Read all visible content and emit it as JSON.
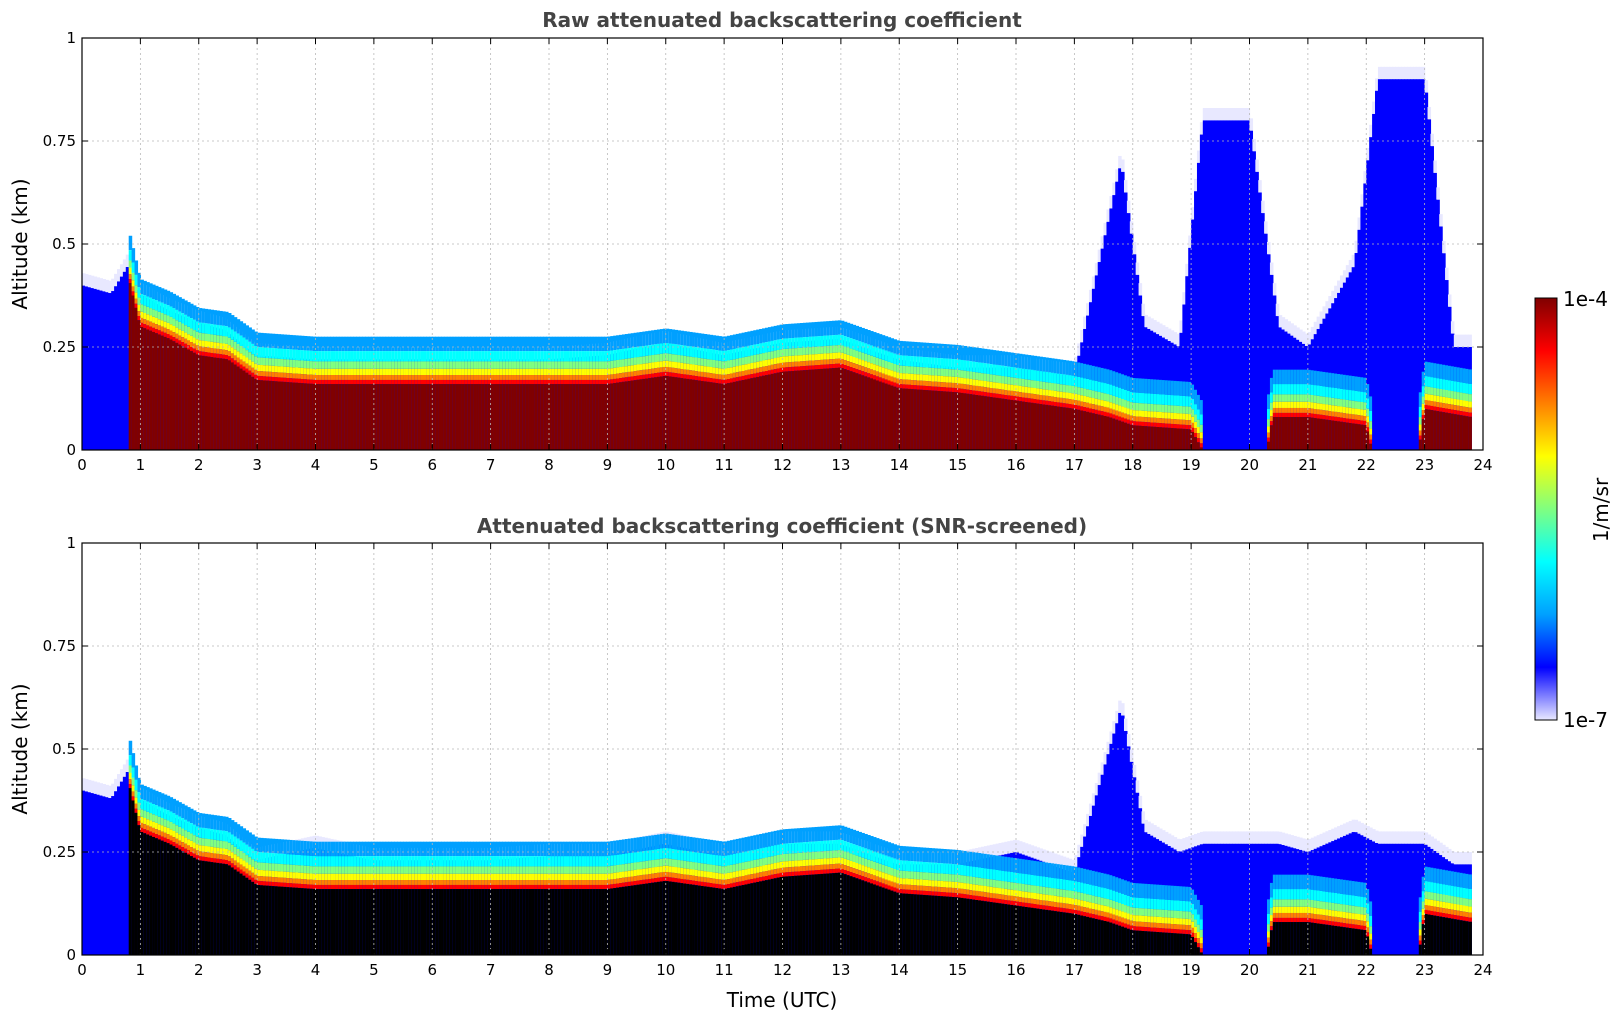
{
  "chart_data": [
    {
      "type": "heatmap",
      "title": "Raw attenuated backscattering coefficient",
      "xlabel": "",
      "ylabel": "Altitude (km)",
      "xlim": [
        0,
        24
      ],
      "ylim": [
        0,
        1
      ],
      "x_ticks": [
        "0",
        "1",
        "2",
        "3",
        "4",
        "5",
        "6",
        "7",
        "8",
        "9",
        "10",
        "11",
        "12",
        "13",
        "14",
        "15",
        "16",
        "17",
        "18",
        "19",
        "20",
        "21",
        "22",
        "23",
        "24"
      ],
      "y_ticks": [
        "0",
        "0.25",
        "0.5",
        "0.75",
        "1"
      ],
      "grid": true,
      "screened": false,
      "layer_top_km": [
        [
          0,
          0.4
        ],
        [
          0.5,
          0.38
        ],
        [
          0.8,
          0.45
        ],
        [
          1,
          0.38
        ],
        [
          1.5,
          0.34
        ],
        [
          2,
          0.31
        ],
        [
          2.5,
          0.29
        ],
        [
          3,
          0.23
        ],
        [
          4,
          0.22
        ],
        [
          5,
          0.22
        ],
        [
          6,
          0.22
        ],
        [
          7,
          0.22
        ],
        [
          8,
          0.22
        ],
        [
          9,
          0.23
        ],
        [
          10,
          0.26
        ],
        [
          11,
          0.23
        ],
        [
          12,
          0.26
        ],
        [
          13,
          0.27
        ],
        [
          14,
          0.22
        ],
        [
          15,
          0.2
        ],
        [
          16,
          0.2
        ],
        [
          17,
          0.18
        ],
        [
          17.8,
          0.7
        ],
        [
          18.2,
          0.3
        ],
        [
          18.8,
          0.25
        ],
        [
          19.2,
          0.8
        ],
        [
          20,
          0.8
        ],
        [
          20.5,
          0.3
        ],
        [
          21,
          0.25
        ],
        [
          21.8,
          0.45
        ],
        [
          22.2,
          0.9
        ],
        [
          23,
          0.9
        ],
        [
          23.5,
          0.25
        ],
        [
          23.8,
          0.25
        ]
      ],
      "dense_layer_top_km": [
        [
          0.8,
          0.42
        ],
        [
          1,
          0.3
        ],
        [
          1.5,
          0.27
        ],
        [
          2,
          0.23
        ],
        [
          2.5,
          0.22
        ],
        [
          3,
          0.17
        ],
        [
          4,
          0.16
        ],
        [
          5,
          0.16
        ],
        [
          6,
          0.16
        ],
        [
          7,
          0.16
        ],
        [
          8,
          0.16
        ],
        [
          9,
          0.16
        ],
        [
          10,
          0.18
        ],
        [
          11,
          0.16
        ],
        [
          12,
          0.19
        ],
        [
          13,
          0.2
        ],
        [
          14,
          0.15
        ],
        [
          15,
          0.14
        ],
        [
          16,
          0.12
        ],
        [
          17,
          0.1
        ],
        [
          17.6,
          0.08
        ],
        [
          18,
          0.06
        ],
        [
          19,
          0.05
        ],
        [
          19.2,
          0.0
        ],
        [
          20.3,
          0.0
        ],
        [
          20.4,
          0.08
        ],
        [
          21,
          0.08
        ],
        [
          22,
          0.06
        ],
        [
          22.1,
          0.0
        ],
        [
          22.9,
          0.0
        ],
        [
          23,
          0.1
        ],
        [
          23.8,
          0.08
        ]
      ]
    },
    {
      "type": "heatmap",
      "title": "Attenuated backscattering coefficient (SNR-screened)",
      "xlabel": "Time (UTC)",
      "ylabel": "Altitude (km)",
      "xlim": [
        0,
        24
      ],
      "ylim": [
        0,
        1
      ],
      "x_ticks": [
        "0",
        "1",
        "2",
        "3",
        "4",
        "5",
        "6",
        "7",
        "8",
        "9",
        "10",
        "11",
        "12",
        "13",
        "14",
        "15",
        "16",
        "17",
        "18",
        "19",
        "20",
        "21",
        "22",
        "23",
        "24"
      ],
      "y_ticks": [
        "0",
        "0.25",
        "0.5",
        "0.75",
        "1"
      ],
      "grid": true,
      "screened": true,
      "layer_top_km": [
        [
          0,
          0.4
        ],
        [
          0.5,
          0.38
        ],
        [
          0.8,
          0.45
        ],
        [
          1,
          0.38
        ],
        [
          1.5,
          0.34
        ],
        [
          2,
          0.31
        ],
        [
          2.5,
          0.29
        ],
        [
          3,
          0.23
        ],
        [
          4,
          0.26
        ],
        [
          5,
          0.23
        ],
        [
          6,
          0.23
        ],
        [
          7,
          0.23
        ],
        [
          8,
          0.24
        ],
        [
          9,
          0.24
        ],
        [
          10,
          0.27
        ],
        [
          11,
          0.24
        ],
        [
          12,
          0.27
        ],
        [
          13,
          0.27
        ],
        [
          14,
          0.22
        ],
        [
          15,
          0.22
        ],
        [
          16,
          0.25
        ],
        [
          17,
          0.2
        ],
        [
          17.8,
          0.6
        ],
        [
          18.2,
          0.3
        ],
        [
          18.8,
          0.25
        ],
        [
          19.2,
          0.27
        ],
        [
          20,
          0.27
        ],
        [
          20.5,
          0.27
        ],
        [
          21,
          0.25
        ],
        [
          21.8,
          0.3
        ],
        [
          22.2,
          0.27
        ],
        [
          23,
          0.27
        ],
        [
          23.5,
          0.22
        ],
        [
          23.8,
          0.22
        ]
      ],
      "dense_layer_top_km": [
        [
          0.8,
          0.42
        ],
        [
          1,
          0.3
        ],
        [
          1.5,
          0.27
        ],
        [
          2,
          0.23
        ],
        [
          2.5,
          0.22
        ],
        [
          3,
          0.17
        ],
        [
          4,
          0.16
        ],
        [
          5,
          0.16
        ],
        [
          6,
          0.16
        ],
        [
          7,
          0.16
        ],
        [
          8,
          0.16
        ],
        [
          9,
          0.16
        ],
        [
          10,
          0.18
        ],
        [
          11,
          0.16
        ],
        [
          12,
          0.19
        ],
        [
          13,
          0.2
        ],
        [
          14,
          0.15
        ],
        [
          15,
          0.14
        ],
        [
          16,
          0.12
        ],
        [
          17,
          0.1
        ],
        [
          17.6,
          0.08
        ],
        [
          18,
          0.06
        ],
        [
          19,
          0.05
        ],
        [
          19.2,
          0.0
        ],
        [
          20.3,
          0.0
        ],
        [
          20.4,
          0.08
        ],
        [
          21,
          0.08
        ],
        [
          22,
          0.06
        ],
        [
          22.1,
          0.0
        ],
        [
          22.9,
          0.0
        ],
        [
          23,
          0.1
        ],
        [
          23.8,
          0.08
        ]
      ]
    }
  ],
  "colorbar": {
    "label": "1/m/sr",
    "max_label": "1e-4",
    "min_label": "1e-7",
    "scale": "log",
    "colormap": "jet",
    "colors": [
      "#e8e8ff",
      "#0000ff",
      "#00a0ff",
      "#00ffff",
      "#80ff80",
      "#ffff00",
      "#ff8000",
      "#ff0000",
      "#800000"
    ],
    "saturation_color_raw": "#800000",
    "saturation_color_screened": "#000000"
  }
}
